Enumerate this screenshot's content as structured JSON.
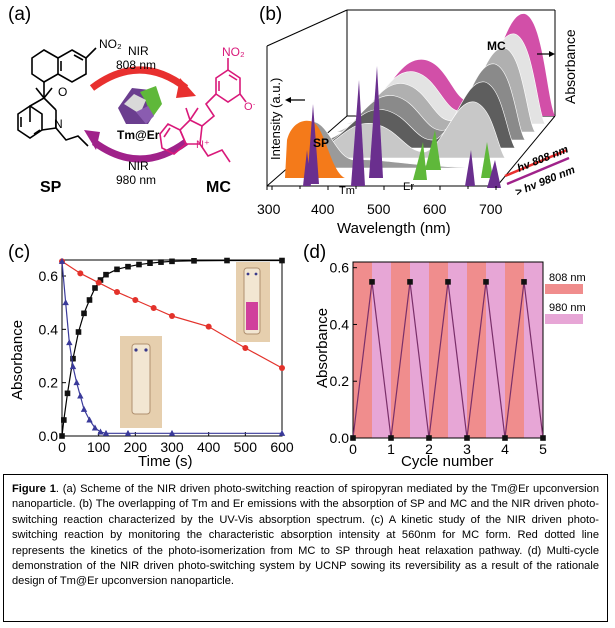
{
  "panel_a": {
    "label": "(a)",
    "sp_label": "SP",
    "mc_label": "MC",
    "center_label": "Tm@Er",
    "top_arrow": {
      "line1": "NIR",
      "line2": "808 nm"
    },
    "bottom_arrow": {
      "line1": "NIR",
      "line2": "980 nm"
    },
    "no2": "NO₂",
    "o_minus": "O⁻",
    "n_plus": "N⁺",
    "o_atom": "O",
    "n_atom": "N",
    "colors": {
      "red_arrow": "#e8302f",
      "purple_arrow": "#a0228a",
      "mc_struct": "#d9197a"
    }
  },
  "panel_b": {
    "label": "(b)",
    "xlabel": "Wavelength (nm)",
    "ylabel_left": "Intensity (a.u.)",
    "ylabel_right": "Absorbance",
    "xticks": [
      "300",
      "400",
      "500",
      "600",
      "700"
    ],
    "annotations": {
      "sp": "SP",
      "mc": "MC",
      "tm": "Tm",
      "er": "Er",
      "hv808": "hv 808 nm",
      "hv980": "> hv 980 nm"
    },
    "colors": {
      "sp_fill": "#f47a1a",
      "mc_fill": "#d24fa8",
      "tm": "#6a2f8e",
      "er": "#5fb83a"
    }
  },
  "chart_data": [
    {
      "type": "line",
      "panel": "c",
      "label": "(c)",
      "xlabel": "Time (s)",
      "ylabel": "Absorbance",
      "xlim": [
        0,
        600
      ],
      "ylim": [
        0,
        0.66
      ],
      "xticks": [
        0,
        100,
        200,
        300,
        400,
        500,
        600
      ],
      "yticks": [
        "0.0",
        "0.2",
        "0.4",
        "0.6"
      ],
      "series": [
        {
          "color": "#000000",
          "marker": "square",
          "x": [
            0,
            5,
            15,
            30,
            45,
            60,
            75,
            90,
            105,
            120,
            150,
            180,
            210,
            240,
            270,
            300,
            360,
            450,
            600
          ],
          "y": [
            0.0,
            0.06,
            0.16,
            0.29,
            0.39,
            0.46,
            0.51,
            0.555,
            0.585,
            0.605,
            0.625,
            0.635,
            0.643,
            0.648,
            0.652,
            0.655,
            0.657,
            0.658,
            0.658
          ]
        },
        {
          "color": "#e3322b",
          "marker": "circle",
          "x": [
            0,
            50,
            100,
            150,
            200,
            250,
            300,
            400,
            500,
            600
          ],
          "y": [
            0.655,
            0.61,
            0.575,
            0.54,
            0.51,
            0.48,
            0.45,
            0.41,
            0.33,
            0.255
          ]
        },
        {
          "color": "#3a3a9a",
          "marker": "triangle",
          "x": [
            0,
            10,
            20,
            30,
            40,
            50,
            60,
            75,
            90,
            105,
            120,
            180,
            300,
            600
          ],
          "y": [
            0.655,
            0.5,
            0.35,
            0.26,
            0.2,
            0.15,
            0.1,
            0.06,
            0.03,
            0.015,
            0.01,
            0.01,
            0.01,
            0.01
          ]
        }
      ]
    },
    {
      "type": "line",
      "panel": "d",
      "label": "(d)",
      "xlabel": "Cycle number",
      "ylabel": "Absorbance",
      "xlim": [
        0,
        5
      ],
      "ylim": [
        0,
        0.62
      ],
      "xticks": [
        0,
        1,
        2,
        3,
        4,
        5
      ],
      "yticks": [
        "0.0",
        "0.2",
        "0.4",
        "0.6"
      ],
      "legend": [
        {
          "name": "808 nm",
          "color": "#f08d8d"
        },
        {
          "name": "980 nm",
          "color": "#e7a6d6"
        }
      ],
      "series": [
        {
          "color": "#7a2f6a",
          "marker": "square",
          "x": [
            0,
            0.5,
            1,
            1.5,
            2,
            2.5,
            3,
            3.5,
            4,
            4.5,
            5
          ],
          "y": [
            0.0,
            0.55,
            0.0,
            0.55,
            0.0,
            0.55,
            0.0,
            0.55,
            0.0,
            0.55,
            0.0
          ]
        }
      ]
    }
  ],
  "caption": {
    "fig": "Figure 1",
    "text": ". (a) Scheme of the NIR driven photo-switching reaction of spiropyran mediated by the Tm@Er upconversion nanoparticle. (b) The overlapping of Tm and Er emissions with the absorption of SP and MC and the NIR driven photo-switching reaction characterized by the UV-Vis absorption spectrum. (c) A kinetic study of the NIR driven photo-switching reaction by monitoring the characteristic absorption intensity at 560nm for MC form. Red dotted line represents the kinetics of the photo-isomerization from MC to SP through heat relaxation pathway. (d) Multi-cycle demonstration of the NIR driven photo-switching system by UCNP sowing its reversibility as a result of the rationale design of Tm@Er upconversion nanoparticle."
  }
}
